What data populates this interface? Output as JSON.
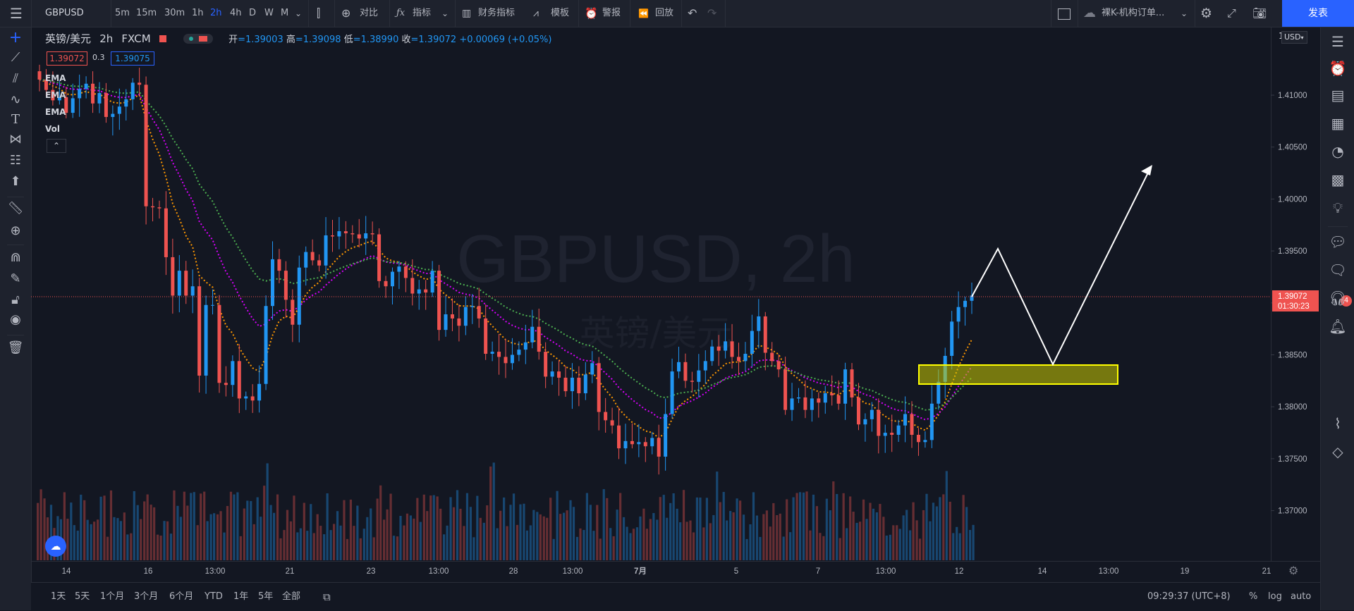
{
  "toolbar": {
    "symbol": "GBPUSD",
    "intervals": [
      "5m",
      "15m",
      "30m",
      "1h",
      "2h",
      "4h",
      "D",
      "W",
      "M"
    ],
    "active_interval": "2h",
    "compare_label": "对比",
    "indicators_label": "指标",
    "financials_label": "财务指标",
    "templates_label": "模板",
    "alert_label": "警报",
    "replay_label": "回放",
    "layout_name": "裸K-机构订单...",
    "publish_label": "发表"
  },
  "legend": {
    "title": "英镑/美元",
    "interval": "2h",
    "source": "FXCM",
    "open_label": "开",
    "open": "=1.39003",
    "high_label": "高",
    "high": "=1.39098",
    "low_label": "低",
    "low": "=1.38990",
    "close_label": "收",
    "close": "=1.39072",
    "change": "+0.00069 (+0.05%)",
    "bid": "1.39072",
    "spread": "0.3",
    "ask": "1.39075",
    "indicators": [
      "EMA",
      "EMA",
      "EMA",
      "Vol"
    ]
  },
  "watermark": {
    "symbol": "GBPUSD, 2h",
    "name": "英镑/美元"
  },
  "price_axis": {
    "currency": "USD",
    "ticks": [
      "1.41000",
      "1.40500",
      "1.40000",
      "1.39500",
      "1.39000",
      "1.38500",
      "1.38000",
      "1.37500",
      "1.37000"
    ],
    "tick_values": [
      1.41,
      1.405,
      1.4,
      1.395,
      1.39,
      1.385,
      1.38,
      1.375,
      1.37
    ],
    "top_label": "1",
    "last_price": "1.39072",
    "countdown": "01:30:23"
  },
  "time_axis": {
    "labels": [
      "14",
      "16",
      "13:00",
      "21",
      "23",
      "13:00",
      "28",
      "13:00",
      "7月",
      "5",
      "7",
      "13:00",
      "12",
      "14",
      "13:00",
      "19",
      "21"
    ]
  },
  "bottombar": {
    "ranges": [
      "1天",
      "5天",
      "1个月",
      "3个月",
      "6个月",
      "YTD",
      "1年",
      "5年",
      "全部"
    ],
    "clock": "09:29:37 (UTC+8)",
    "percent_label": "%",
    "log_label": "log",
    "auto_label": "auto"
  },
  "right_badge": "4",
  "colors": {
    "up": "#2196f3",
    "down": "#ef5350",
    "ema1": "#ff9800",
    "ema2": "#d500f9",
    "ema3": "#4caf50",
    "zone": "#ffff00",
    "accent": "#2962ff"
  },
  "chart_data": {
    "type": "candlestick",
    "symbol": "GBPUSD",
    "last": 1.39072,
    "ylim": [
      1.365,
      1.415
    ],
    "note": "Candles are approximated from the visual",
    "closes": [
      1.4115,
      1.4105,
      1.4095,
      1.4098,
      1.4083,
      1.4097,
      1.4106,
      1.4111,
      1.4092,
      1.4102,
      1.4079,
      1.4082,
      1.4089,
      1.4096,
      1.4112,
      1.411,
      1.3993,
      1.3992,
      1.3991,
      1.3944,
      1.3907,
      1.3931,
      1.3907,
      1.3916,
      1.383,
      1.3898,
      1.3898,
      1.3823,
      1.3821,
      1.3844,
      1.3808,
      1.381,
      1.3806,
      1.3822,
      1.3897,
      1.3942,
      1.3931,
      1.3903,
      1.3879,
      1.3934,
      1.3949,
      1.3941,
      1.3936,
      1.3965,
      1.3964,
      1.3969,
      1.3967,
      1.3966,
      1.3962,
      1.3967,
      1.3966,
      1.3921,
      1.3916,
      1.393,
      1.3935,
      1.3924,
      1.3909,
      1.3913,
      1.391,
      1.3931,
      1.3874,
      1.3889,
      1.3885,
      1.3878,
      1.3896,
      1.3897,
      1.3885,
      1.3851,
      1.3853,
      1.3848,
      1.3842,
      1.385,
      1.3855,
      1.3862,
      1.3877,
      1.3853,
      1.3829,
      1.3834,
      1.3828,
      1.3815,
      1.3828,
      1.3813,
      1.3831,
      1.3842,
      1.3795,
      1.3787,
      1.3782,
      1.376,
      1.3767,
      1.3764,
      1.3766,
      1.3762,
      1.377,
      1.3752,
      1.3793,
      1.3834,
      1.3843,
      1.3825,
      1.3824,
      1.3835,
      1.3844,
      1.3858,
      1.3854,
      1.3863,
      1.3848,
      1.3844,
      1.3851,
      1.3873,
      1.3887,
      1.3852,
      1.3844,
      1.3836,
      1.3797,
      1.3808,
      1.3809,
      1.3797,
      1.3808,
      1.3804,
      1.3813,
      1.3811,
      1.3803,
      1.3836,
      1.3809,
      1.3783,
      1.3788,
      1.3797,
      1.3772,
      1.3775,
      1.3773,
      1.3782,
      1.3793,
      1.3773,
      1.3766,
      1.3768,
      1.3803,
      1.3824,
      1.3849,
      1.3882,
      1.3896,
      1.3902,
      1.3907
    ]
  }
}
